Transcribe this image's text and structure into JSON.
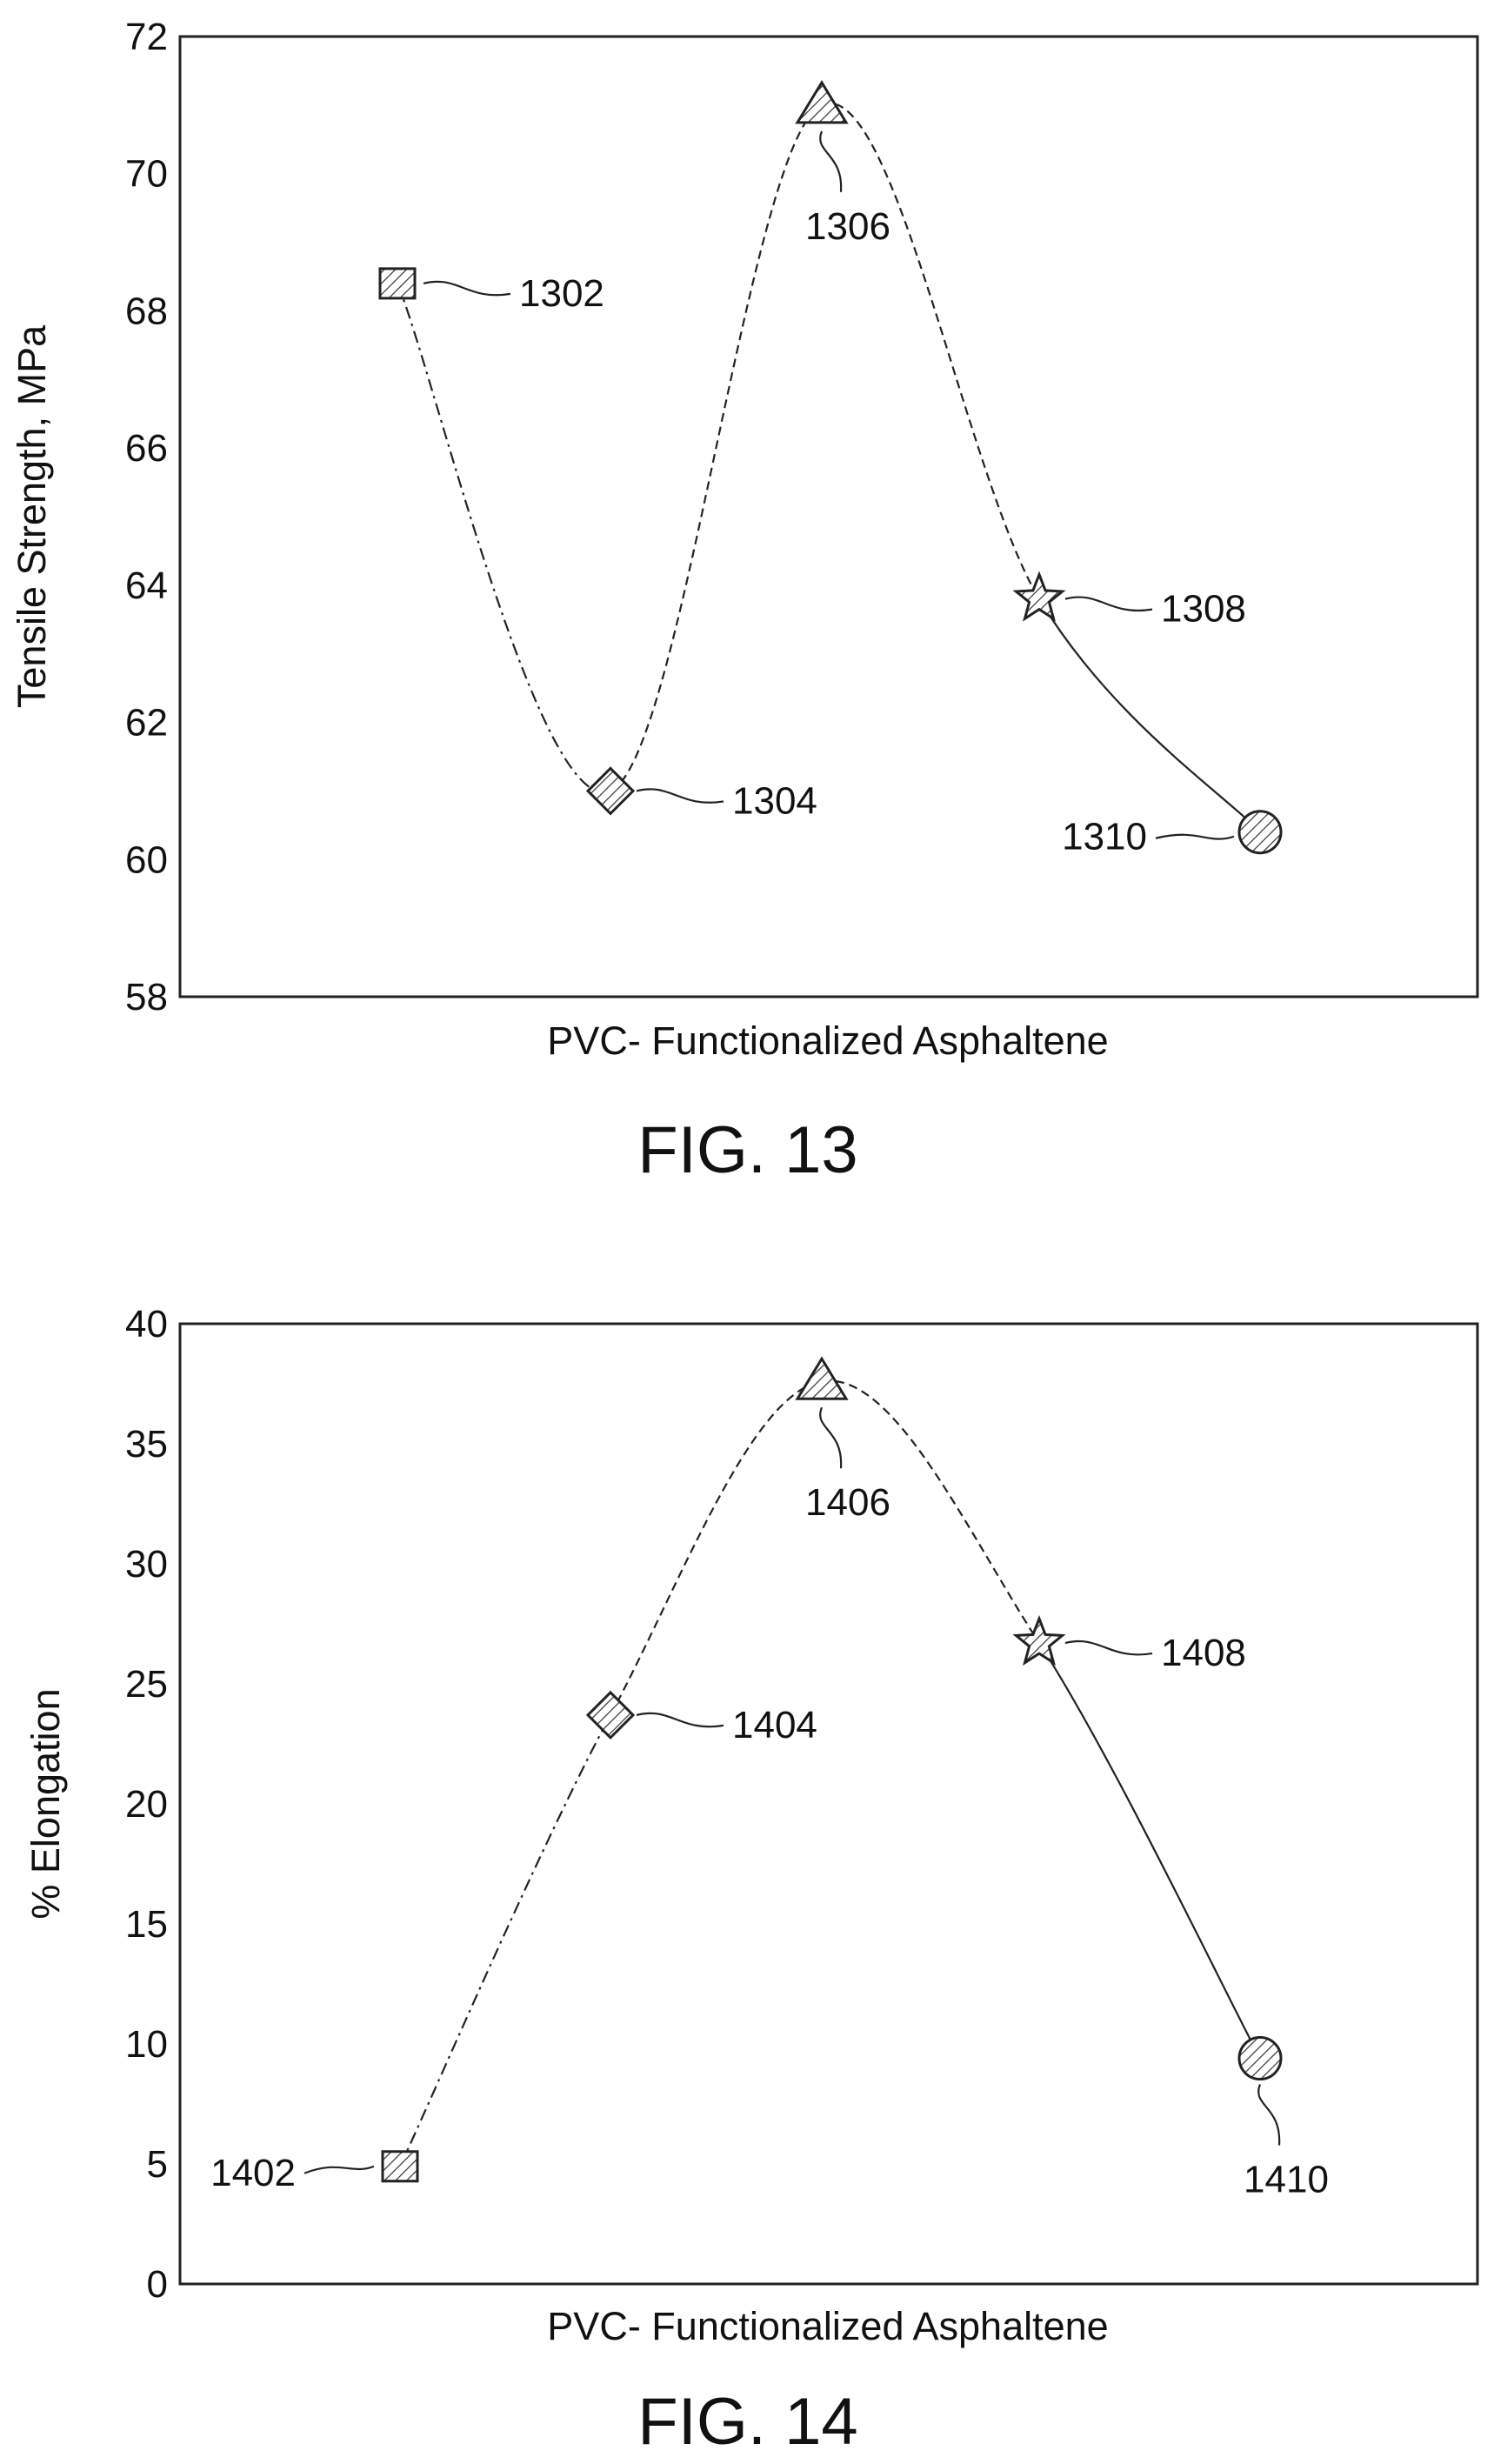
{
  "chart_data": [
    {
      "type": "line",
      "figure_label": "FIG. 13",
      "xlabel": "PVC- Functionalized Asphaltene",
      "ylabel": "Tensile Strength, MPa",
      "ylim": [
        58,
        72
      ],
      "yticks": [
        58,
        60,
        62,
        64,
        66,
        68,
        70,
        72
      ],
      "grid": false,
      "points": [
        {
          "ref": "1302",
          "marker": "square",
          "y": 68.4
        },
        {
          "ref": "1304",
          "marker": "diamond",
          "y": 61.0
        },
        {
          "ref": "1306",
          "marker": "triangle",
          "y": 71.0
        },
        {
          "ref": "1308",
          "marker": "star",
          "y": 63.8
        },
        {
          "ref": "1310",
          "marker": "circle",
          "y": 60.4
        }
      ]
    },
    {
      "type": "line",
      "figure_label": "FIG. 14",
      "xlabel": "PVC- Functionalized Asphaltene",
      "ylabel": "% Elongation",
      "ylim": [
        0,
        40
      ],
      "yticks": [
        0,
        5,
        10,
        15,
        20,
        25,
        30,
        35,
        40
      ],
      "grid": false,
      "points": [
        {
          "ref": "1402",
          "marker": "square",
          "y": 4.9
        },
        {
          "ref": "1404",
          "marker": "diamond",
          "y": 23.7
        },
        {
          "ref": "1406",
          "marker": "triangle",
          "y": 37.6
        },
        {
          "ref": "1408",
          "marker": "star",
          "y": 26.7
        },
        {
          "ref": "1410",
          "marker": "circle",
          "y": 9.4
        }
      ]
    }
  ]
}
